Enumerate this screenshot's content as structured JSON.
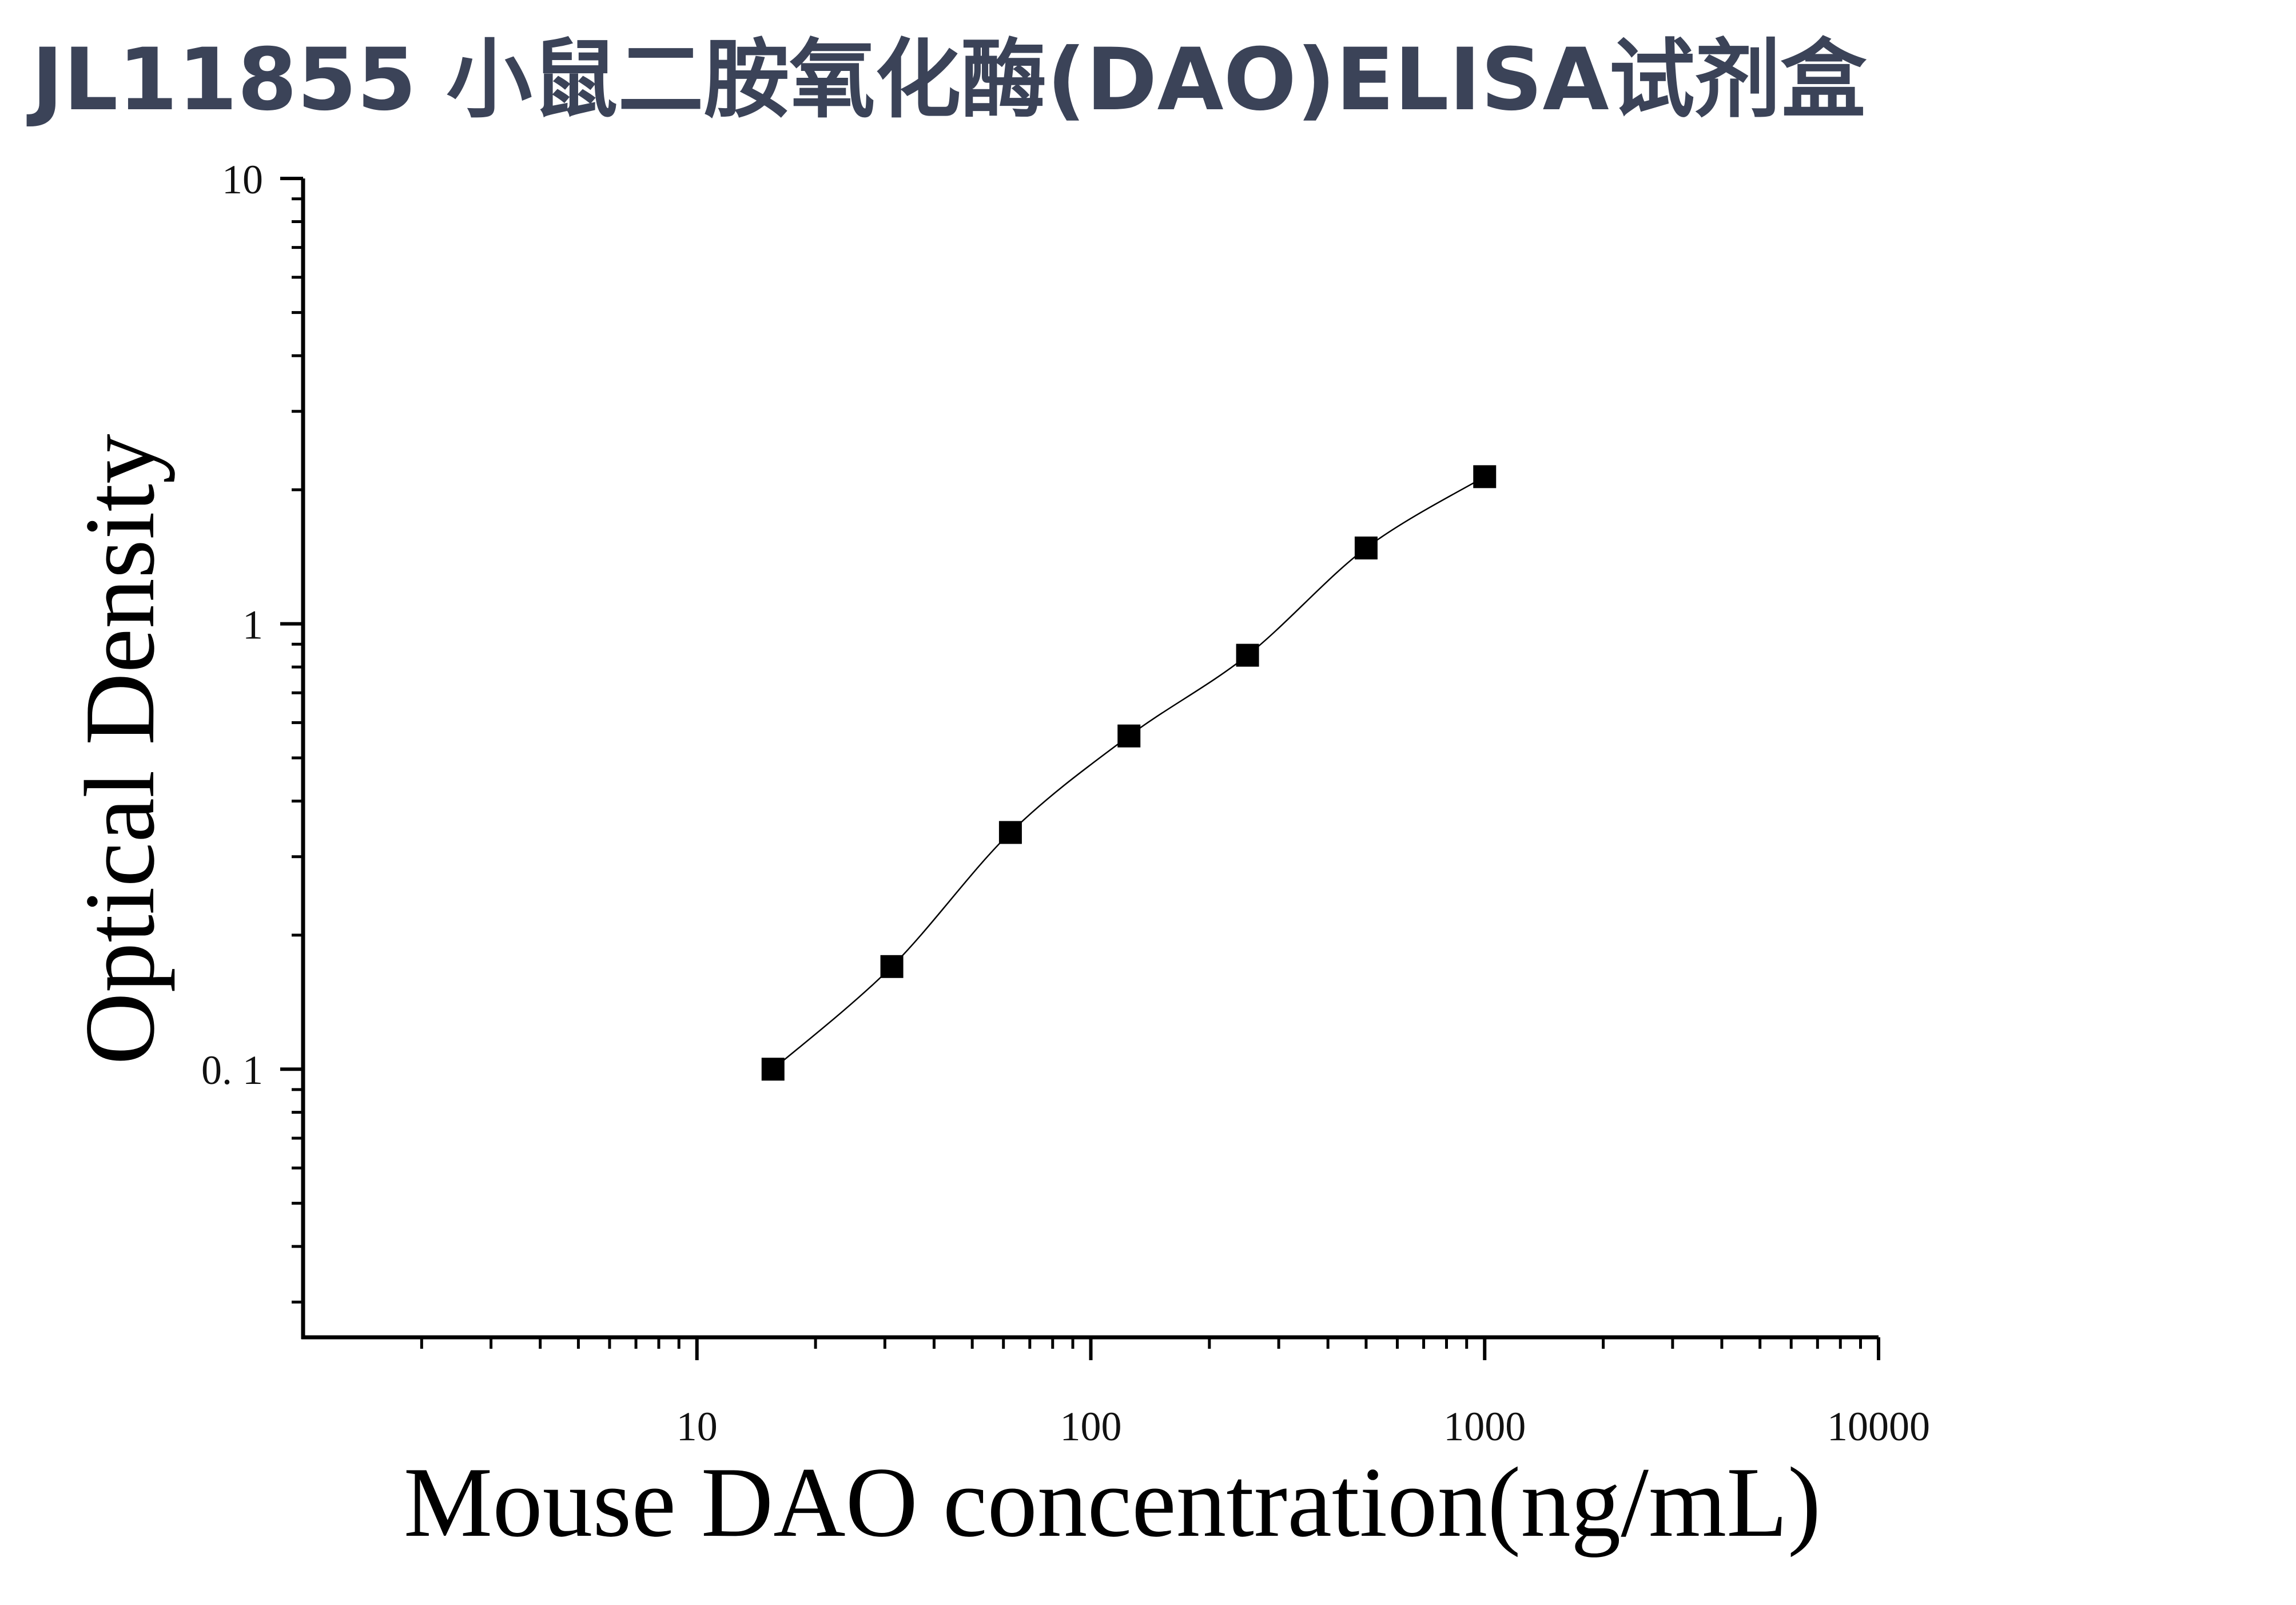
{
  "chart_data": {
    "type": "scatter",
    "title": "JL11855 小鼠二胺氧化酶(DAO)ELISA试剂盒",
    "xlabel": "Mouse DAO concentration(ng/mL)",
    "ylabel": "Optical Density",
    "xscale": "log",
    "yscale": "log",
    "xlim": [
      1,
      10000
    ],
    "ylim": [
      0.025,
      10
    ],
    "xticks": [
      10,
      100,
      1000,
      10000
    ],
    "xtick_labels": [
      "10",
      "100",
      "1000",
      "10000"
    ],
    "yticks": [
      0.1,
      1,
      10
    ],
    "ytick_labels": [
      "0. 1",
      "1",
      "10"
    ],
    "grid": false,
    "marker": "square",
    "color": "#000000",
    "series": [
      {
        "x": [
          15.6,
          31.25,
          62.5,
          125,
          250,
          500,
          1000
        ],
        "y": [
          0.1,
          0.17,
          0.34,
          0.56,
          0.85,
          1.48,
          2.14
        ]
      }
    ],
    "fit_curve": true
  }
}
